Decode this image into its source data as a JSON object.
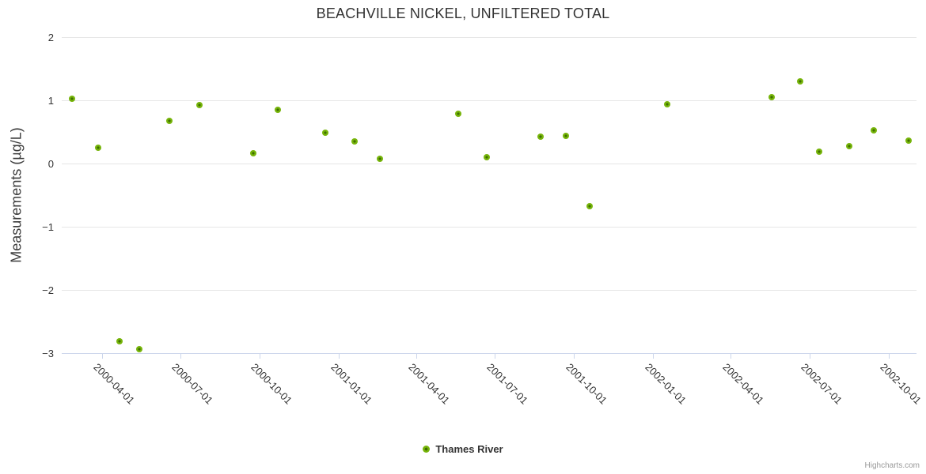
{
  "credits": {
    "label": "Highcharts.com"
  },
  "chart_data": {
    "type": "scatter",
    "title": "BEACHVILLE NICKEL, UNFILTERED TOTAL",
    "xlabel": "",
    "ylabel": "Measurements (µg/L)",
    "ylim": [
      -3,
      2
    ],
    "yticks": [
      2,
      1,
      0,
      -1,
      -2,
      -3
    ],
    "ytick_labels": [
      "2",
      "1",
      "0",
      "−1",
      "−2",
      "−3"
    ],
    "xlim": [
      "2000-02-14",
      "2002-11-02"
    ],
    "xticks": [
      "2000-04-01",
      "2000-07-01",
      "2000-10-01",
      "2001-01-01",
      "2001-04-01",
      "2001-07-01",
      "2001-10-01",
      "2002-01-01",
      "2002-04-01",
      "2002-07-01",
      "2002-10-01"
    ],
    "grid": "horizontal-only",
    "legend_position": "bottom-center",
    "grid_color": "#e6e6e6",
    "axis_line_color": "#ccd6eb",
    "series": [
      {
        "name": "Thames River",
        "color": "#76b40a",
        "marker_core_color": "#3f6f00",
        "points": [
          [
            "2000-02-26",
            1.03
          ],
          [
            "2000-03-27",
            0.26
          ],
          [
            "2000-04-21",
            -2.81
          ],
          [
            "2000-05-14",
            -2.93
          ],
          [
            "2000-06-18",
            0.68
          ],
          [
            "2000-07-23",
            0.93
          ],
          [
            "2000-09-23",
            0.17
          ],
          [
            "2000-10-22",
            0.86
          ],
          [
            "2000-12-16",
            0.49
          ],
          [
            "2001-01-19",
            0.36
          ],
          [
            "2001-02-17",
            0.08
          ],
          [
            "2001-05-19",
            0.79
          ],
          [
            "2001-06-21",
            0.11
          ],
          [
            "2001-08-23",
            0.43
          ],
          [
            "2001-09-21",
            0.45
          ],
          [
            "2001-10-19",
            -0.67
          ],
          [
            "2002-01-17",
            0.94
          ],
          [
            "2002-05-18",
            1.06
          ],
          [
            "2002-06-20",
            1.31
          ],
          [
            "2002-07-12",
            0.2
          ],
          [
            "2002-08-16",
            0.28
          ],
          [
            "2002-09-13",
            0.53
          ],
          [
            "2002-10-24",
            0.37
          ]
        ]
      }
    ]
  }
}
